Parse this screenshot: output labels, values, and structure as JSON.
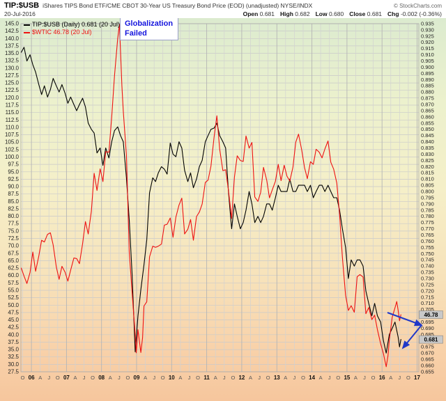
{
  "header": {
    "symbol": "TIP:$USB",
    "description": "iShares TIPS Bond ETF/CME CBOT 30-Year US Treasury Bond Price (EOD) (unadjusted) NYSE/INDX",
    "copyright": "© StockCharts.com",
    "date": "20-Jul-2016",
    "quote": {
      "open_label": "Open",
      "open_value": "0.681",
      "high_label": "High",
      "high_value": "0.682",
      "low_label": "Low",
      "low_value": "0.680",
      "close_label": "Close",
      "close_value": "0.681",
      "chg_label": "Chg",
      "chg_value": "-0.002 (-0.36%)"
    }
  },
  "legend": {
    "series1_label": "TIP:$USB (Daily) 0.681 (20 Jul)",
    "series2_label": "$WTIC 46.78 (20 Jul)"
  },
  "annotation": {
    "line1": "Globalization",
    "line2": "Failed"
  },
  "markers": {
    "wtic_last_label": "46.78",
    "wtic_last_value": 46.78,
    "ratio_last_label": "0.681",
    "ratio_last_value": 0.681
  },
  "colors": {
    "background_gradient": [
      "#dcebcf",
      "#ecf1cd",
      "#f5efc8",
      "#f7e2ba",
      "#f8d2aa",
      "#f6c69d"
    ],
    "grid": "#c9c9c9",
    "grid_year": "#b5b5b5",
    "annotation_text": "#1414dd",
    "arrow": "#2038c8",
    "value_box_bg": "#c9c9c9",
    "series_ratio": "#000000",
    "series_wtic": "#ee1111"
  },
  "chart_data": {
    "type": "line",
    "title": "TIP:$USB iShares TIPS Bond ETF / CME CBOT 30-Year US Treasury Bond Price ratio with $WTIC crude oil overlay",
    "legend_position": "top-left",
    "grid": true,
    "x_axis": {
      "start": 2005.7,
      "end": 2017.05,
      "lead_tick": {
        "t": 2005.75,
        "label": "O"
      },
      "years": [
        "06",
        "07",
        "08",
        "09",
        "10",
        "11",
        "12",
        "13",
        "14",
        "15",
        "16",
        "17"
      ],
      "quarter_labels": [
        "A",
        "J",
        "O"
      ]
    },
    "y_axis_left": {
      "series": "$WTIC",
      "min": 27.5,
      "max": 145.0,
      "step": 2.5,
      "decimals": 1
    },
    "y_axis_right": {
      "series": "TIP:$USB",
      "min": 0.655,
      "max": 0.935,
      "step": 0.005,
      "decimals": 3
    },
    "series": [
      {
        "name": "TIP:$USB",
        "color": "#000000",
        "axis": "right",
        "points": [
          [
            2005.71,
            0.912
          ],
          [
            2005.79,
            0.916
          ],
          [
            2005.87,
            0.905
          ],
          [
            2005.96,
            0.91
          ],
          [
            2006.04,
            0.902
          ],
          [
            2006.12,
            0.896
          ],
          [
            2006.21,
            0.886
          ],
          [
            2006.29,
            0.878
          ],
          [
            2006.37,
            0.885
          ],
          [
            2006.46,
            0.876
          ],
          [
            2006.54,
            0.882
          ],
          [
            2006.62,
            0.891
          ],
          [
            2006.71,
            0.885
          ],
          [
            2006.79,
            0.88
          ],
          [
            2006.87,
            0.886
          ],
          [
            2006.96,
            0.879
          ],
          [
            2007.04,
            0.871
          ],
          [
            2007.12,
            0.876
          ],
          [
            2007.21,
            0.87
          ],
          [
            2007.29,
            0.865
          ],
          [
            2007.37,
            0.87
          ],
          [
            2007.46,
            0.875
          ],
          [
            2007.54,
            0.868
          ],
          [
            2007.62,
            0.855
          ],
          [
            2007.71,
            0.85
          ],
          [
            2007.79,
            0.847
          ],
          [
            2007.87,
            0.831
          ],
          [
            2007.96,
            0.835
          ],
          [
            2008.04,
            0.821
          ],
          [
            2008.12,
            0.835
          ],
          [
            2008.21,
            0.827
          ],
          [
            2008.29,
            0.84
          ],
          [
            2008.37,
            0.849
          ],
          [
            2008.46,
            0.852
          ],
          [
            2008.54,
            0.845
          ],
          [
            2008.62,
            0.84
          ],
          [
            2008.71,
            0.811
          ],
          [
            2008.79,
            0.777
          ],
          [
            2008.87,
            0.734
          ],
          [
            2008.96,
            0.671
          ],
          [
            2009.04,
            0.7
          ],
          [
            2009.12,
            0.721
          ],
          [
            2009.21,
            0.741
          ],
          [
            2009.29,
            0.761
          ],
          [
            2009.37,
            0.799
          ],
          [
            2009.46,
            0.811
          ],
          [
            2009.54,
            0.808
          ],
          [
            2009.62,
            0.815
          ],
          [
            2009.71,
            0.82
          ],
          [
            2009.79,
            0.818
          ],
          [
            2009.87,
            0.814
          ],
          [
            2009.96,
            0.839
          ],
          [
            2010.04,
            0.83
          ],
          [
            2010.12,
            0.828
          ],
          [
            2010.21,
            0.84
          ],
          [
            2010.29,
            0.835
          ],
          [
            2010.37,
            0.817
          ],
          [
            2010.46,
            0.808
          ],
          [
            2010.54,
            0.815
          ],
          [
            2010.62,
            0.803
          ],
          [
            2010.71,
            0.81
          ],
          [
            2010.79,
            0.82
          ],
          [
            2010.87,
            0.825
          ],
          [
            2010.96,
            0.84
          ],
          [
            2011.04,
            0.845
          ],
          [
            2011.12,
            0.85
          ],
          [
            2011.21,
            0.851
          ],
          [
            2011.29,
            0.855
          ],
          [
            2011.37,
            0.845
          ],
          [
            2011.46,
            0.84
          ],
          [
            2011.54,
            0.835
          ],
          [
            2011.62,
            0.8
          ],
          [
            2011.71,
            0.77
          ],
          [
            2011.79,
            0.79
          ],
          [
            2011.87,
            0.78
          ],
          [
            2011.96,
            0.77
          ],
          [
            2012.04,
            0.775
          ],
          [
            2012.12,
            0.785
          ],
          [
            2012.21,
            0.8
          ],
          [
            2012.29,
            0.79
          ],
          [
            2012.37,
            0.775
          ],
          [
            2012.46,
            0.78
          ],
          [
            2012.54,
            0.775
          ],
          [
            2012.62,
            0.78
          ],
          [
            2012.71,
            0.79
          ],
          [
            2012.79,
            0.79
          ],
          [
            2012.87,
            0.785
          ],
          [
            2012.96,
            0.795
          ],
          [
            2013.04,
            0.805
          ],
          [
            2013.12,
            0.8
          ],
          [
            2013.21,
            0.8
          ],
          [
            2013.29,
            0.8
          ],
          [
            2013.37,
            0.81
          ],
          [
            2013.46,
            0.8
          ],
          [
            2013.54,
            0.8
          ],
          [
            2013.62,
            0.805
          ],
          [
            2013.71,
            0.805
          ],
          [
            2013.79,
            0.805
          ],
          [
            2013.87,
            0.8
          ],
          [
            2013.96,
            0.805
          ],
          [
            2014.04,
            0.795
          ],
          [
            2014.12,
            0.8
          ],
          [
            2014.21,
            0.805
          ],
          [
            2014.29,
            0.805
          ],
          [
            2014.37,
            0.8
          ],
          [
            2014.46,
            0.805
          ],
          [
            2014.54,
            0.8
          ],
          [
            2014.62,
            0.795
          ],
          [
            2014.71,
            0.795
          ],
          [
            2014.79,
            0.785
          ],
          [
            2014.87,
            0.77
          ],
          [
            2014.96,
            0.755
          ],
          [
            2015.04,
            0.73
          ],
          [
            2015.12,
            0.745
          ],
          [
            2015.21,
            0.74
          ],
          [
            2015.29,
            0.745
          ],
          [
            2015.37,
            0.745
          ],
          [
            2015.46,
            0.74
          ],
          [
            2015.54,
            0.72
          ],
          [
            2015.62,
            0.71
          ],
          [
            2015.71,
            0.7
          ],
          [
            2015.79,
            0.71
          ],
          [
            2015.87,
            0.7
          ],
          [
            2015.96,
            0.695
          ],
          [
            2016.04,
            0.68
          ],
          [
            2016.12,
            0.67
          ],
          [
            2016.21,
            0.685
          ],
          [
            2016.29,
            0.69
          ],
          [
            2016.37,
            0.695
          ],
          [
            2016.46,
            0.683
          ],
          [
            2016.5,
            0.675
          ],
          [
            2016.54,
            0.681
          ]
        ]
      },
      {
        "name": "$WTIC",
        "color": "#ee1111",
        "axis": "left",
        "points": [
          [
            2005.71,
            62.5
          ],
          [
            2005.79,
            59.8
          ],
          [
            2005.87,
            57.3
          ],
          [
            2005.96,
            61.0
          ],
          [
            2006.04,
            67.9
          ],
          [
            2006.12,
            61.4
          ],
          [
            2006.21,
            66.6
          ],
          [
            2006.29,
            71.9
          ],
          [
            2006.37,
            71.3
          ],
          [
            2006.46,
            73.9
          ],
          [
            2006.54,
            74.4
          ],
          [
            2006.62,
            70.3
          ],
          [
            2006.71,
            62.9
          ],
          [
            2006.79,
            58.7
          ],
          [
            2006.87,
            63.1
          ],
          [
            2006.96,
            61.1
          ],
          [
            2007.04,
            58.1
          ],
          [
            2007.12,
            61.8
          ],
          [
            2007.21,
            65.9
          ],
          [
            2007.29,
            65.7
          ],
          [
            2007.37,
            64.0
          ],
          [
            2007.46,
            70.7
          ],
          [
            2007.54,
            78.2
          ],
          [
            2007.62,
            74.0
          ],
          [
            2007.71,
            81.7
          ],
          [
            2007.79,
            94.5
          ],
          [
            2007.87,
            88.7
          ],
          [
            2007.96,
            96.0
          ],
          [
            2008.04,
            91.7
          ],
          [
            2008.12,
            101.8
          ],
          [
            2008.21,
            101.6
          ],
          [
            2008.29,
            113.5
          ],
          [
            2008.37,
            127.4
          ],
          [
            2008.46,
            140.0
          ],
          [
            2008.51,
            144.8
          ],
          [
            2008.58,
            124.1
          ],
          [
            2008.62,
            115.5
          ],
          [
            2008.71,
            100.6
          ],
          [
            2008.79,
            67.8
          ],
          [
            2008.87,
            54.4
          ],
          [
            2008.96,
            40.0
          ],
          [
            2008.99,
            33.9
          ],
          [
            2009.04,
            41.7
          ],
          [
            2009.12,
            34.0
          ],
          [
            2009.17,
            39.0
          ],
          [
            2009.21,
            49.7
          ],
          [
            2009.29,
            51.1
          ],
          [
            2009.37,
            66.3
          ],
          [
            2009.46,
            69.9
          ],
          [
            2009.54,
            69.5
          ],
          [
            2009.62,
            69.9
          ],
          [
            2009.71,
            70.6
          ],
          [
            2009.79,
            77.0
          ],
          [
            2009.87,
            77.3
          ],
          [
            2009.96,
            79.4
          ],
          [
            2010.04,
            72.9
          ],
          [
            2010.12,
            79.7
          ],
          [
            2010.21,
            83.8
          ],
          [
            2010.29,
            86.1
          ],
          [
            2010.37,
            74.0
          ],
          [
            2010.46,
            75.6
          ],
          [
            2010.54,
            78.9
          ],
          [
            2010.62,
            71.9
          ],
          [
            2010.71,
            79.9
          ],
          [
            2010.79,
            81.4
          ],
          [
            2010.87,
            84.1
          ],
          [
            2010.96,
            91.4
          ],
          [
            2011.04,
            92.2
          ],
          [
            2011.12,
            96.9
          ],
          [
            2011.21,
            106.7
          ],
          [
            2011.29,
            113.9
          ],
          [
            2011.37,
            102.7
          ],
          [
            2011.46,
            95.4
          ],
          [
            2011.54,
            95.7
          ],
          [
            2011.62,
            88.8
          ],
          [
            2011.71,
            79.2
          ],
          [
            2011.79,
            93.2
          ],
          [
            2011.87,
            100.4
          ],
          [
            2011.96,
            98.8
          ],
          [
            2012.04,
            98.5
          ],
          [
            2012.12,
            107.1
          ],
          [
            2012.21,
            103.0
          ],
          [
            2012.29,
            104.9
          ],
          [
            2012.37,
            86.5
          ],
          [
            2012.46,
            85.0
          ],
          [
            2012.54,
            88.1
          ],
          [
            2012.62,
            96.5
          ],
          [
            2012.71,
            92.2
          ],
          [
            2012.79,
            86.2
          ],
          [
            2012.87,
            88.9
          ],
          [
            2012.96,
            91.8
          ],
          [
            2013.04,
            97.5
          ],
          [
            2013.12,
            92.0
          ],
          [
            2013.21,
            97.2
          ],
          [
            2013.29,
            93.5
          ],
          [
            2013.37,
            91.9
          ],
          [
            2013.46,
            96.6
          ],
          [
            2013.54,
            105.0
          ],
          [
            2013.62,
            107.7
          ],
          [
            2013.71,
            102.3
          ],
          [
            2013.79,
            96.4
          ],
          [
            2013.87,
            92.7
          ],
          [
            2013.96,
            98.4
          ],
          [
            2014.04,
            97.5
          ],
          [
            2014.12,
            102.6
          ],
          [
            2014.21,
            101.6
          ],
          [
            2014.29,
            99.7
          ],
          [
            2014.37,
            102.7
          ],
          [
            2014.46,
            105.4
          ],
          [
            2014.54,
            98.2
          ],
          [
            2014.62,
            95.9
          ],
          [
            2014.71,
            91.2
          ],
          [
            2014.79,
            80.5
          ],
          [
            2014.87,
            66.2
          ],
          [
            2014.96,
            53.3
          ],
          [
            2015.04,
            48.2
          ],
          [
            2015.12,
            49.8
          ],
          [
            2015.21,
            47.6
          ],
          [
            2015.29,
            59.6
          ],
          [
            2015.37,
            60.3
          ],
          [
            2015.46,
            59.5
          ],
          [
            2015.54,
            47.1
          ],
          [
            2015.62,
            49.2
          ],
          [
            2015.71,
            45.1
          ],
          [
            2015.79,
            46.6
          ],
          [
            2015.87,
            41.7
          ],
          [
            2015.96,
            37.0
          ],
          [
            2016.04,
            33.6
          ],
          [
            2016.12,
            29.2
          ],
          [
            2016.17,
            32.8
          ],
          [
            2016.21,
            38.3
          ],
          [
            2016.29,
            45.9
          ],
          [
            2016.37,
            49.1
          ],
          [
            2016.42,
            51.2
          ],
          [
            2016.46,
            48.3
          ],
          [
            2016.5,
            44.7
          ],
          [
            2016.54,
            46.78
          ]
        ]
      }
    ]
  }
}
